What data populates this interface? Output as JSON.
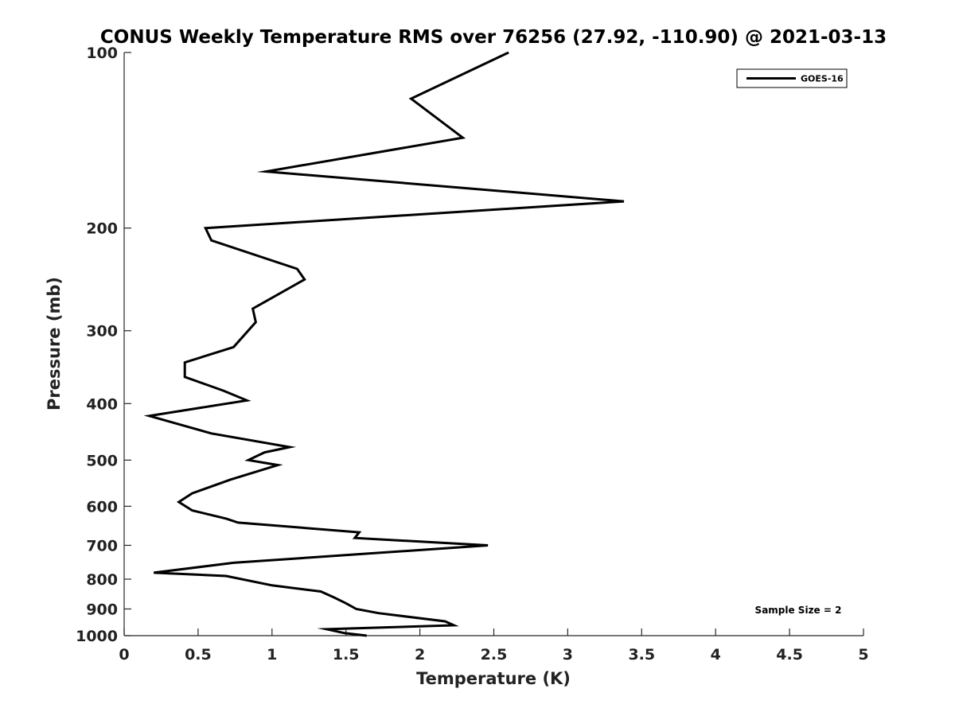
{
  "chart_data": {
    "type": "line",
    "title": "CONUS Weekly Temperature RMS over 76256 (27.92, -110.90) @ 2021-03-13",
    "xlabel": "Temperature (K)",
    "ylabel": "Pressure (mb)",
    "xlim": [
      0,
      5
    ],
    "ylim": [
      100,
      1000
    ],
    "yscale": "log",
    "y_reversed": true,
    "xticks": [
      0,
      0.5,
      1,
      1.5,
      2,
      2.5,
      3,
      3.5,
      4,
      4.5,
      5
    ],
    "xtick_labels": [
      "0",
      "0.5",
      "1",
      "1.5",
      "2",
      "2.5",
      "3",
      "3.5",
      "4",
      "4.5",
      "5"
    ],
    "yticks": [
      100,
      200,
      300,
      400,
      500,
      600,
      700,
      800,
      900,
      1000
    ],
    "ytick_labels": [
      "100",
      "200",
      "300",
      "400",
      "500",
      "600",
      "700",
      "800",
      "900",
      "1000"
    ],
    "grid": false,
    "legend_position": "top-right",
    "series": [
      {
        "name": "GOES-16",
        "color": "#000000",
        "x": [
          2.6,
          1.94,
          2.29,
          0.96,
          3.38,
          0.55,
          0.59,
          1.17,
          1.22,
          0.87,
          0.89,
          0.74,
          0.41,
          0.41,
          0.67,
          0.83,
          0.17,
          0.59,
          1.12,
          0.95,
          0.84,
          1.04,
          0.72,
          0.46,
          0.37,
          0.46,
          0.69,
          0.77,
          1.59,
          1.56,
          2.46,
          0.74,
          0.2,
          0.69,
          1.0,
          1.33,
          1.42,
          1.5,
          1.57,
          1.72,
          2.17,
          2.23,
          1.37,
          1.49,
          1.64
        ],
        "y": [
          100,
          120,
          140,
          160,
          180,
          200,
          210,
          235,
          245,
          275,
          290,
          320,
          340,
          360,
          380,
          395,
          420,
          450,
          475,
          485,
          500,
          510,
          540,
          570,
          590,
          610,
          630,
          640,
          665,
          680,
          700,
          750,
          780,
          790,
          820,
          840,
          860,
          880,
          900,
          915,
          945,
          960,
          975,
          990,
          1000
        ]
      }
    ]
  },
  "annotations": {
    "sample_size": "Sample Size = 2"
  }
}
